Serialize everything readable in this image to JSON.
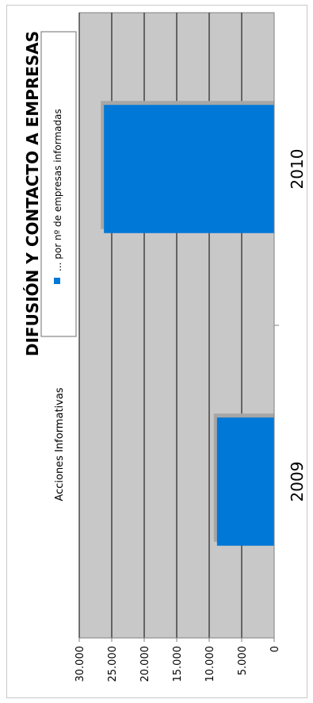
{
  "chart_data": {
    "type": "bar",
    "orientation": "rotated-90",
    "title": "DIFUSIÓN Y CONTACTO A EMPRESAS",
    "subtitle": "Acciones Informativas",
    "categories": [
      "2009",
      "2010"
    ],
    "series": [
      {
        "name": "... por nº de empresas informadas",
        "values": [
          8800,
          26200
        ]
      }
    ],
    "value_ticks": [
      "0",
      "5.000",
      "10.000",
      "15.000",
      "20.000",
      "25.000",
      "30.000"
    ],
    "value_range": [
      0,
      30000
    ],
    "grid": true,
    "legend_position": "top-right",
    "colors": {
      "bar": "#0078d7",
      "bar_shadow": "#a6a6a6",
      "plot_background": "#c8c8c8",
      "gridline": "#000000"
    }
  }
}
